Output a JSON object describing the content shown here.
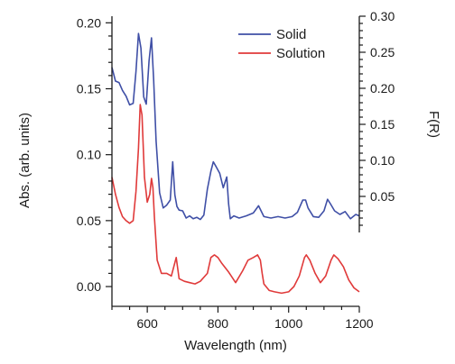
{
  "chart_data": {
    "type": "line",
    "xlabel": "Wavelength (nm)",
    "ylabel_left": "Abs. (arb. units)",
    "ylabel_right": "F(R)",
    "xlim": [
      500,
      1200
    ],
    "ylim_left": [
      -0.015,
      0.205
    ],
    "ylim_right": [
      0.0,
      0.3
    ],
    "x_ticks": [
      600,
      800,
      1000,
      1200
    ],
    "y_ticks_left": [
      0.0,
      0.05,
      0.1,
      0.15,
      0.2
    ],
    "y_ticks_right": [
      0.05,
      0.1,
      0.15,
      0.2,
      0.25,
      0.3
    ],
    "grid": false,
    "legend_position": "top-right",
    "series": [
      {
        "name": "Solid",
        "axis": "right",
        "color": "#3f4fa6",
        "x": [
          500,
          510,
          520,
          530,
          540,
          550,
          560,
          568,
          575,
          582,
          590,
          597,
          605,
          612,
          618,
          625,
          635,
          645,
          655,
          665,
          672,
          678,
          684,
          690,
          700,
          710,
          720,
          730,
          740,
          750,
          760,
          770,
          780,
          787,
          795,
          805,
          815,
          825,
          830,
          835,
          845,
          860,
          880,
          900,
          915,
          930,
          950,
          970,
          990,
          1010,
          1025,
          1040,
          1048,
          1055,
          1070,
          1085,
          1100,
          1110,
          1118,
          1130,
          1145,
          1160,
          1175,
          1190,
          1200
        ],
        "y": [
          0.229,
          0.21,
          0.208,
          0.197,
          0.189,
          0.177,
          0.179,
          0.223,
          0.276,
          0.256,
          0.188,
          0.178,
          0.238,
          0.27,
          0.212,
          0.127,
          0.055,
          0.034,
          0.038,
          0.045,
          0.098,
          0.052,
          0.036,
          0.031,
          0.03,
          0.02,
          0.023,
          0.019,
          0.021,
          0.018,
          0.024,
          0.06,
          0.085,
          0.098,
          0.091,
          0.082,
          0.062,
          0.077,
          0.04,
          0.019,
          0.023,
          0.02,
          0.023,
          0.027,
          0.037,
          0.022,
          0.02,
          0.022,
          0.02,
          0.022,
          0.028,
          0.045,
          0.045,
          0.034,
          0.022,
          0.021,
          0.03,
          0.046,
          0.04,
          0.03,
          0.025,
          0.029,
          0.019,
          0.025,
          0.023
        ]
      },
      {
        "name": "Solution",
        "axis": "left",
        "color": "#e03a3a",
        "x": [
          500,
          510,
          520,
          530,
          540,
          550,
          560,
          568,
          575,
          580,
          585,
          592,
          600,
          607,
          612,
          616,
          620,
          628,
          640,
          655,
          668,
          676,
          682,
          690,
          705,
          720,
          735,
          750,
          770,
          780,
          790,
          800,
          810,
          830,
          850,
          870,
          885,
          900,
          912,
          920,
          925,
          930,
          945,
          960,
          980,
          1000,
          1015,
          1030,
          1045,
          1050,
          1060,
          1075,
          1090,
          1105,
          1120,
          1128,
          1140,
          1155,
          1170,
          1185,
          1200
        ],
        "y": [
          0.083,
          0.07,
          0.06,
          0.053,
          0.05,
          0.048,
          0.05,
          0.072,
          0.105,
          0.138,
          0.13,
          0.083,
          0.064,
          0.07,
          0.082,
          0.075,
          0.053,
          0.02,
          0.01,
          0.01,
          0.008,
          0.016,
          0.022,
          0.006,
          0.004,
          0.003,
          0.002,
          0.004,
          0.01,
          0.022,
          0.024,
          0.022,
          0.018,
          0.011,
          0.003,
          0.012,
          0.02,
          0.022,
          0.024,
          0.02,
          0.01,
          0.002,
          -0.003,
          -0.004,
          -0.005,
          -0.004,
          0.0,
          0.008,
          0.022,
          0.024,
          0.02,
          0.01,
          0.003,
          0.008,
          0.02,
          0.024,
          0.021,
          0.015,
          0.005,
          -0.001,
          -0.004
        ]
      }
    ]
  }
}
